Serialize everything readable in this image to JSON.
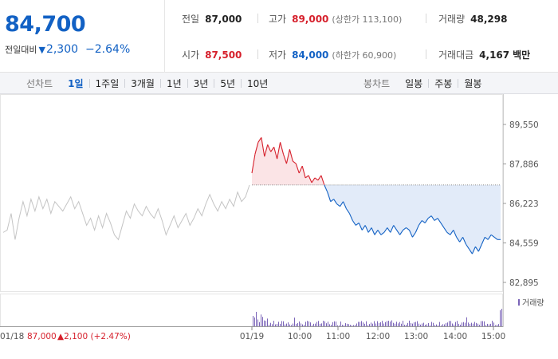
{
  "stock": {
    "price": "84,700",
    "change_label": "전일대비",
    "change_amount": "2,300",
    "change_pct": "−2.64%"
  },
  "stats": {
    "prev_close": {
      "label": "전일",
      "value": "87,000"
    },
    "high": {
      "label": "고가",
      "value": "89,000",
      "limit": "(상한가 113,100)"
    },
    "volume": {
      "label": "거래량",
      "value": "48,298"
    },
    "open": {
      "label": "시가",
      "value": "87,500"
    },
    "low": {
      "label": "저가",
      "value": "84,000",
      "limit": "(하한가 60,900)"
    },
    "trade_value": {
      "label": "거래대금",
      "value": "4,167",
      "unit": "백만"
    }
  },
  "tabs": {
    "line_title": "선차트",
    "line_items": [
      "1일",
      "1주일",
      "3개월",
      "1년",
      "3년",
      "5년",
      "10년"
    ],
    "candle_title": "봉차트",
    "candle_items": [
      "일봉",
      "주봉",
      "월봉"
    ]
  },
  "colors": {
    "up": "#d6202c",
    "down": "#1261c4",
    "up_fill": "#fbe4e6",
    "down_fill": "#e2ebf9",
    "prev_day_line": "#c4c4c4",
    "volume_bar": "#7a64b8"
  },
  "chart_data": {
    "type": "line",
    "y_ticks": [
      "89,550",
      "87,886",
      "86,223",
      "84,559",
      "82,895"
    ],
    "ylim": [
      82895,
      89550
    ],
    "reference_line": 87000,
    "x_tick_labels": [
      "01/19",
      "10:00",
      "11:00",
      "12:00",
      "13:00",
      "14:00",
      "15:00"
    ],
    "prev_day_label": "01/18",
    "prev_day_close": "87,000",
    "prev_day_change": "▲2,100 (+2.47%)",
    "volume_label": "거래량",
    "prev_day_series": {
      "values": [
        85000,
        85100,
        85800,
        84700,
        85600,
        86300,
        85700,
        86400,
        85900,
        86500,
        86000,
        86400,
        85800,
        86300,
        86100,
        85900,
        86200,
        86500,
        86000,
        86300,
        85800,
        85300,
        85600,
        85100,
        85700,
        85200,
        85800,
        85400,
        84900,
        84700,
        85300,
        85900,
        85600,
        86200,
        85900,
        85700,
        86100,
        85800,
        85600,
        86000,
        85500,
        84900,
        85300,
        85700,
        85200,
        85500,
        85800,
        85300,
        85600,
        86000,
        85700,
        86200,
        86600,
        86200,
        85900,
        86300,
        86000,
        86400,
        86100,
        86700,
        86300,
        86500,
        87000
      ]
    },
    "today_series": {
      "values": [
        87500,
        88300,
        88800,
        89000,
        88200,
        88700,
        88400,
        88600,
        88100,
        88800,
        88300,
        87900,
        88500,
        88000,
        87900,
        87500,
        87800,
        87300,
        87400,
        87100,
        87300,
        87200,
        87400,
        87000,
        86700,
        86300,
        86400,
        86200,
        86100,
        86300,
        86000,
        85800,
        85500,
        85300,
        85400,
        85100,
        85300,
        85000,
        85200,
        84900,
        85100,
        84900,
        85000,
        85200,
        85000,
        85300,
        85100,
        84900,
        85100,
        85200,
        85100,
        84800,
        85000,
        85300,
        85500,
        85400,
        85600,
        85700,
        85500,
        85600,
        85400,
        85200,
        85000,
        84900,
        85100,
        84800,
        84600,
        84800,
        84500,
        84300,
        84100,
        84400,
        84200,
        84500,
        84800,
        84700,
        84900,
        84800,
        84700,
        84700
      ]
    }
  }
}
